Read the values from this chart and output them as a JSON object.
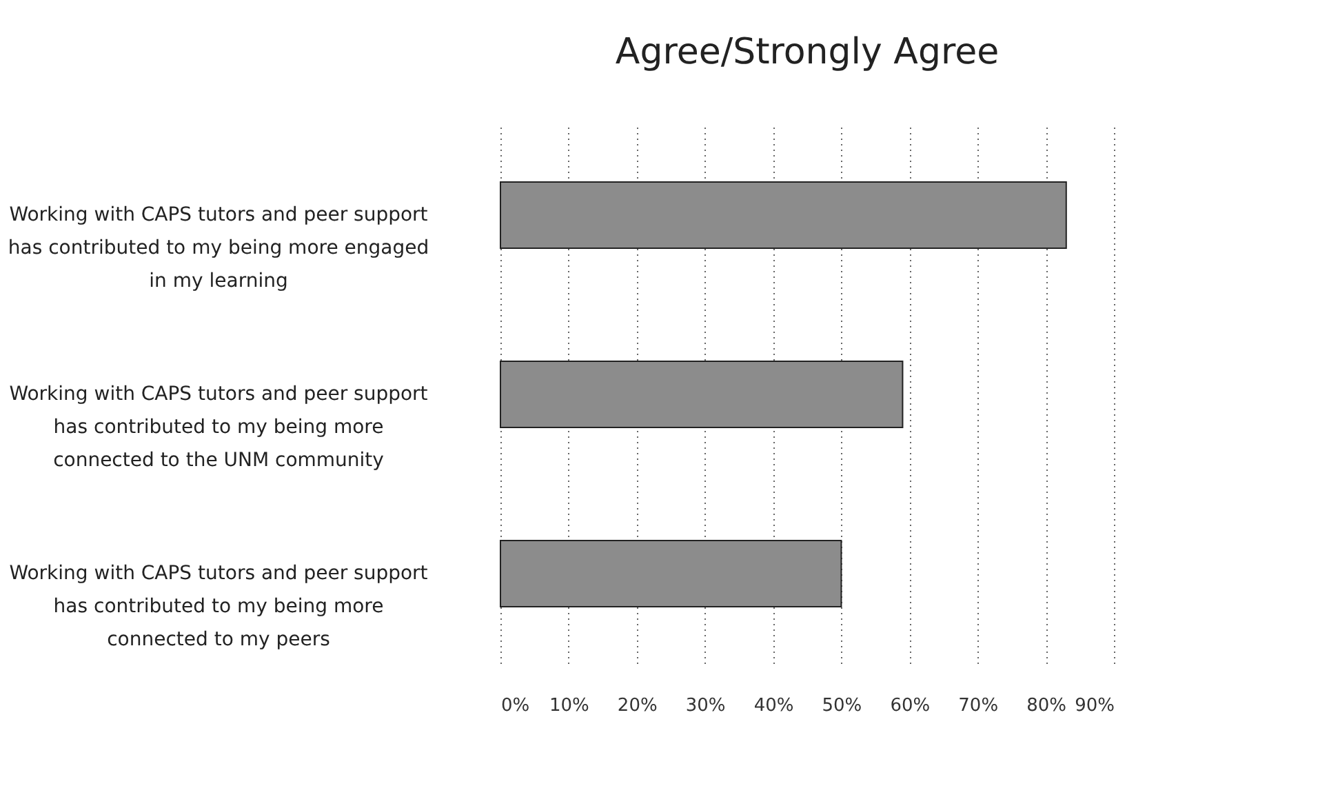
{
  "chart_data": {
    "type": "bar",
    "orientation": "horizontal",
    "title": "Agree/Strongly Agree",
    "categories": [
      "Working with CAPS tutors and peer support\nhas contributed to my being more engaged\nin my learning",
      "Working with CAPS tutors and peer support\nhas contributed to my being more\nconnected to the UNM community",
      "Working with CAPS tutors and peer support\nhas contributed to my being more\nconnected to my peers"
    ],
    "values": [
      83,
      59,
      50
    ],
    "color": "#8c8c8c",
    "xlim": [
      0,
      90
    ],
    "xticks": [
      {
        "value": 0,
        "label": "0%"
      },
      {
        "value": 10,
        "label": "10%"
      },
      {
        "value": 20,
        "label": "20%"
      },
      {
        "value": 30,
        "label": "30%"
      },
      {
        "value": 40,
        "label": "40%"
      },
      {
        "value": 50,
        "label": "50%"
      },
      {
        "value": 60,
        "label": "60%"
      },
      {
        "value": 70,
        "label": "70%"
      },
      {
        "value": 80,
        "label": "80%"
      },
      {
        "value": 90,
        "label": "90%"
      }
    ],
    "grid": "x",
    "line_style": "dotted"
  }
}
